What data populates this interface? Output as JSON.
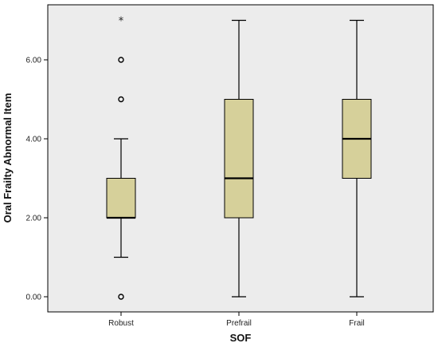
{
  "chart_data": {
    "type": "boxplot",
    "title": "",
    "xlabel": "SOF",
    "ylabel": "Oral Frailty Abnormal Item",
    "ylim": [
      -0.5,
      7.3
    ],
    "yticks": [
      0,
      2,
      4,
      6
    ],
    "ytick_labels": [
      "0.00",
      "2.00",
      "4.00",
      "6.00"
    ],
    "categories": [
      "Robust",
      "Prefrail",
      "Frail"
    ],
    "boxes": [
      {
        "category": "Robust",
        "whisker_low": 1,
        "q1": 2,
        "median": 2,
        "q3": 3,
        "whisker_high": 4,
        "outliers": [
          0,
          5,
          6
        ],
        "extremes": [
          7
        ]
      },
      {
        "category": "Prefrail",
        "whisker_low": 0,
        "q1": 2,
        "median": 3,
        "q3": 5,
        "whisker_high": 7,
        "outliers": [],
        "extremes": []
      },
      {
        "category": "Frail",
        "whisker_low": 0,
        "q1": 3,
        "median": 4,
        "q3": 5,
        "whisker_high": 7,
        "outliers": [],
        "extremes": []
      }
    ],
    "grid": false,
    "colors": {
      "plot_background": "#ececec",
      "box_fill": "#d6d09a",
      "stroke": "#000000"
    },
    "outlier_marker": "o",
    "extreme_marker": "*"
  }
}
